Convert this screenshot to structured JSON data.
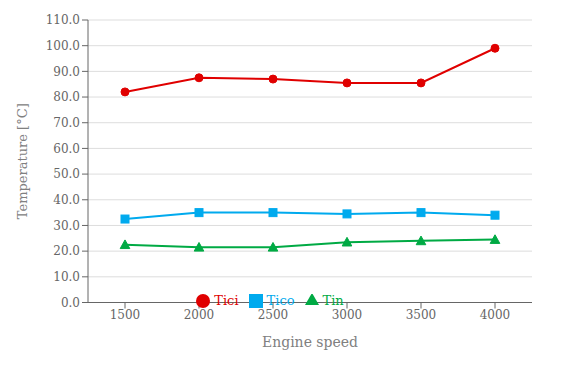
{
  "chart_data": {
    "type": "line",
    "x": [
      1500,
      2000,
      2500,
      3000,
      3500,
      4000
    ],
    "series": [
      {
        "name": "Tici",
        "color": "#e00000",
        "marker": "circle",
        "values": [
          82.0,
          87.5,
          87.0,
          85.5,
          85.5,
          99.0
        ]
      },
      {
        "name": "Tico",
        "color": "#00aaee",
        "marker": "square",
        "values": [
          32.5,
          35.0,
          35.0,
          34.5,
          35.0,
          34.0
        ]
      },
      {
        "name": "Tin",
        "color": "#00aa44",
        "marker": "triangle",
        "values": [
          22.5,
          21.5,
          21.5,
          23.5,
          24.0,
          24.5
        ]
      }
    ],
    "xlabel": "Engine speed",
    "ylabel": "Temperature [°C]",
    "xlim": [
      1250,
      4250
    ],
    "xticks": [
      1500,
      2000,
      2500,
      3000,
      3500,
      4000
    ],
    "ylim": [
      0.0,
      110.0
    ],
    "yticks": [
      {
        "value": 0,
        "label": "0.0"
      },
      {
        "value": 10,
        "label": "10.0"
      },
      {
        "value": 20,
        "label": "20.0"
      },
      {
        "value": 30,
        "label": "30.0"
      },
      {
        "value": 40,
        "label": "40.0"
      },
      {
        "value": 50,
        "label": "50.0"
      },
      {
        "value": 60,
        "label": "60.0"
      },
      {
        "value": 70,
        "label": "70.0"
      },
      {
        "value": 80,
        "label": "80.0"
      },
      {
        "value": 90,
        "label": "90.0"
      },
      {
        "value": 100,
        "label": "100.0"
      },
      {
        "value": 110,
        "label": "110.0"
      }
    ],
    "grid": true,
    "legend": "bottom"
  }
}
